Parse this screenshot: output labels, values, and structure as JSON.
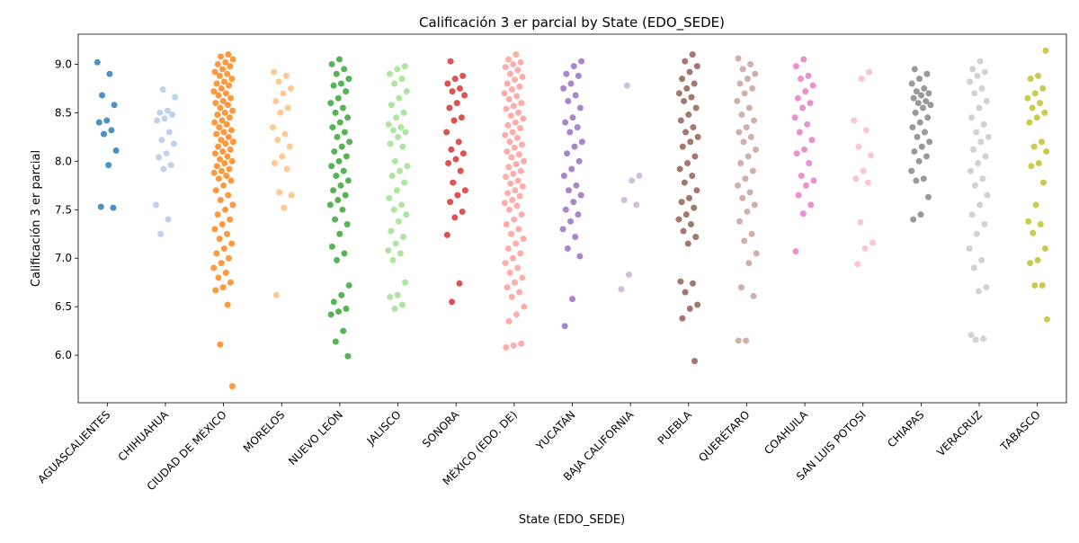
{
  "chart_data": {
    "type": "strip",
    "title": "Calificación 3 er parcial by State (EDO_SEDE)",
    "x_label": "State (EDO_SEDE)",
    "y_label": "Calificación 3 er parcial",
    "categories": [
      "AGUASCALIENTES",
      "CHIHUAHUA",
      "CIUDAD DE MÉXICO",
      "MORELOS",
      "NUEVO LEÓN",
      "JALISCO",
      "SONORA",
      "MÉXICO (EDO. DE)",
      "YUCATÁN",
      "BAJA CALIFORNIA",
      "PUEBLA",
      "QUERÉTARO",
      "COAHUILA",
      "SAN LUIS POTOSI",
      "CHIAPAS",
      "VERACRUZ",
      "TABASCO"
    ],
    "colors": [
      "#1f77b4",
      "#aec7e8",
      "#ff7f0e",
      "#ffbb78",
      "#2ca02c",
      "#98df8a",
      "#d62728",
      "#ff9896",
      "#9467bd",
      "#c5b0d5",
      "#8c564b",
      "#c49c94",
      "#e377c2",
      "#f7b6d2",
      "#7f7f7f",
      "#c7c7c7",
      "#bcbd22"
    ],
    "values": [
      [
        9.02,
        8.9,
        8.68,
        8.58,
        8.42,
        8.4,
        8.32,
        8.28,
        8.11,
        7.96,
        7.53,
        7.52
      ],
      [
        8.74,
        8.66,
        8.52,
        8.5,
        8.48,
        8.44,
        8.42,
        8.3,
        8.22,
        8.18,
        8.08,
        8.04,
        7.96,
        7.92,
        7.55,
        7.4,
        7.25
      ],
      [
        9.1,
        9.08,
        9.05,
        9.02,
        9.0,
        8.98,
        8.95,
        8.92,
        8.9,
        8.88,
        8.85,
        8.82,
        8.8,
        8.78,
        8.75,
        8.72,
        8.7,
        8.68,
        8.65,
        8.62,
        8.6,
        8.58,
        8.55,
        8.52,
        8.5,
        8.48,
        8.45,
        8.42,
        8.4,
        8.38,
        8.35,
        8.32,
        8.3,
        8.28,
        8.25,
        8.22,
        8.2,
        8.18,
        8.15,
        8.12,
        8.1,
        8.08,
        8.05,
        8.02,
        8.0,
        7.98,
        7.95,
        7.92,
        7.9,
        7.88,
        7.85,
        7.82,
        7.8,
        7.75,
        7.7,
        7.65,
        7.6,
        7.55,
        7.5,
        7.45,
        7.4,
        7.35,
        7.3,
        7.25,
        7.2,
        7.15,
        7.1,
        7.05,
        7.0,
        6.95,
        6.9,
        6.85,
        6.8,
        6.75,
        6.7,
        6.67,
        6.52,
        6.11,
        5.68
      ],
      [
        8.92,
        8.88,
        8.82,
        8.75,
        8.7,
        8.62,
        8.55,
        8.5,
        8.35,
        8.28,
        8.22,
        8.15,
        8.05,
        7.98,
        7.92,
        7.68,
        7.65,
        7.52,
        6.62
      ],
      [
        9.05,
        9.0,
        8.95,
        8.9,
        8.85,
        8.8,
        8.78,
        8.72,
        8.65,
        8.6,
        8.55,
        8.5,
        8.45,
        8.4,
        8.35,
        8.3,
        8.25,
        8.2,
        8.15,
        8.1,
        8.05,
        8.0,
        7.95,
        7.9,
        7.85,
        7.8,
        7.75,
        7.7,
        7.65,
        7.6,
        7.55,
        7.5,
        7.4,
        7.35,
        7.25,
        7.12,
        7.05,
        6.98,
        6.72,
        6.62,
        6.55,
        6.48,
        6.45,
        6.42,
        6.25,
        6.14,
        5.99
      ],
      [
        8.98,
        8.95,
        8.9,
        8.85,
        8.8,
        8.72,
        8.65,
        8.58,
        8.5,
        8.45,
        8.38,
        8.35,
        8.32,
        8.3,
        8.25,
        8.18,
        8.15,
        8.0,
        7.95,
        7.9,
        7.85,
        7.78,
        7.7,
        7.62,
        7.55,
        7.5,
        7.45,
        7.38,
        7.28,
        7.22,
        7.15,
        7.08,
        7.05,
        6.98,
        6.75,
        6.62,
        6.6,
        6.52,
        6.48
      ],
      [
        9.03,
        8.88,
        8.85,
        8.8,
        8.75,
        8.72,
        8.68,
        8.6,
        8.55,
        8.45,
        8.42,
        8.3,
        8.2,
        8.12,
        8.08,
        8.02,
        7.98,
        7.9,
        7.78,
        7.7,
        7.65,
        7.58,
        7.48,
        7.42,
        7.24,
        6.74,
        6.55
      ],
      [
        9.1,
        9.05,
        9.02,
        9.0,
        8.97,
        8.94,
        8.9,
        8.87,
        8.84,
        8.8,
        8.77,
        8.74,
        8.7,
        8.67,
        8.64,
        8.6,
        8.57,
        8.54,
        8.5,
        8.47,
        8.44,
        8.4,
        8.37,
        8.34,
        8.3,
        8.27,
        8.24,
        8.2,
        8.17,
        8.14,
        8.1,
        8.07,
        8.04,
        8.0,
        7.97,
        7.94,
        7.9,
        7.87,
        7.84,
        7.8,
        7.77,
        7.74,
        7.7,
        7.67,
        7.64,
        7.6,
        7.57,
        7.54,
        7.5,
        7.45,
        7.4,
        7.35,
        7.3,
        7.25,
        7.2,
        7.15,
        7.1,
        7.05,
        7.0,
        6.95,
        6.9,
        6.85,
        6.8,
        6.75,
        6.7,
        6.65,
        6.6,
        6.5,
        6.42,
        6.35,
        6.12,
        6.1,
        6.08
      ],
      [
        9.03,
        8.98,
        8.9,
        8.88,
        8.8,
        8.75,
        8.68,
        8.62,
        8.55,
        8.45,
        8.4,
        8.35,
        8.3,
        8.2,
        8.15,
        8.08,
        8.0,
        7.92,
        7.85,
        7.75,
        7.7,
        7.65,
        7.58,
        7.5,
        7.45,
        7.38,
        7.3,
        7.22,
        7.1,
        7.02,
        6.58,
        6.3
      ],
      [
        8.78,
        7.85,
        7.8,
        7.6,
        7.55,
        6.83,
        6.68
      ],
      [
        9.1,
        9.03,
        8.98,
        8.92,
        8.85,
        8.8,
        8.75,
        8.7,
        8.66,
        8.62,
        8.55,
        8.48,
        8.42,
        8.35,
        8.3,
        8.25,
        8.2,
        8.15,
        8.05,
        7.98,
        7.92,
        7.85,
        7.78,
        7.7,
        7.62,
        7.58,
        7.52,
        7.45,
        7.4,
        7.35,
        7.28,
        7.22,
        7.15,
        6.76,
        6.74,
        6.65,
        6.52,
        6.48,
        6.38,
        5.94
      ],
      [
        9.06,
        9.0,
        8.95,
        8.9,
        8.85,
        8.8,
        8.75,
        8.7,
        8.62,
        8.55,
        8.48,
        8.42,
        8.35,
        8.3,
        8.25,
        8.2,
        8.12,
        8.05,
        7.98,
        7.9,
        7.82,
        7.75,
        7.68,
        7.62,
        7.55,
        7.48,
        7.38,
        7.25,
        7.18,
        7.05,
        6.95,
        6.7,
        6.61,
        6.15,
        6.15
      ],
      [
        9.05,
        8.98,
        8.88,
        8.85,
        8.78,
        8.72,
        8.65,
        8.6,
        8.55,
        8.45,
        8.38,
        8.3,
        8.22,
        8.12,
        8.08,
        7.98,
        7.85,
        7.8,
        7.75,
        7.65,
        7.55,
        7.46,
        7.07
      ],
      [
        8.92,
        8.85,
        8.42,
        8.32,
        8.15,
        8.06,
        7.9,
        7.82,
        7.78,
        7.37,
        7.16,
        7.1,
        6.94
      ],
      [
        8.95,
        8.9,
        8.85,
        8.8,
        8.75,
        8.72,
        8.7,
        8.68,
        8.65,
        8.62,
        8.6,
        8.58,
        8.55,
        8.5,
        8.45,
        8.4,
        8.35,
        8.3,
        8.25,
        8.2,
        8.15,
        8.1,
        8.05,
        8.0,
        7.9,
        7.82,
        7.8,
        7.63,
        7.45,
        7.4
      ],
      [
        9.03,
        8.95,
        8.92,
        8.88,
        8.82,
        8.75,
        8.7,
        8.62,
        8.55,
        8.45,
        8.38,
        8.3,
        8.25,
        8.2,
        8.12,
        8.05,
        7.98,
        7.9,
        7.82,
        7.75,
        7.65,
        7.55,
        7.45,
        7.35,
        7.25,
        7.1,
        6.98,
        6.9,
        6.7,
        6.66,
        6.21,
        6.17,
        6.16
      ],
      [
        9.14,
        8.88,
        8.85,
        8.75,
        8.7,
        8.65,
        8.6,
        8.55,
        8.5,
        8.45,
        8.4,
        8.2,
        8.15,
        8.1,
        7.98,
        7.95,
        7.78,
        7.55,
        7.38,
        7.35,
        7.26,
        7.1,
        6.98,
        6.95,
        6.72,
        6.72,
        6.37
      ]
    ],
    "ylim": [
      5.51,
      9.31
    ],
    "yticks": [
      {
        "value": 6,
        "label": "6.0"
      },
      6.5,
      {
        "value": 7,
        "label": "7.0"
      },
      7.5,
      {
        "value": 8,
        "label": "8.0"
      },
      8.5,
      {
        "value": 9,
        "label": "9.0"
      }
    ]
  }
}
